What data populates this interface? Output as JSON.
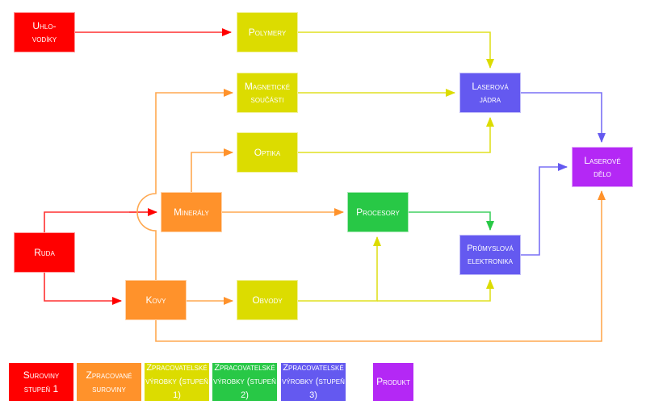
{
  "nodes": {
    "uhlovodiky": {
      "l1": "Uhlo-",
      "l2": "vodíky"
    },
    "ruda": {
      "l1": "Ruda"
    },
    "mineraly": {
      "l1": "Minerály"
    },
    "kovy": {
      "l1": "Kovy"
    },
    "polymery": {
      "l1": "Polymery"
    },
    "magneticke": {
      "l1": "Magnetické",
      "l2": "součásti"
    },
    "optika": {
      "l1": "Optika"
    },
    "obvody": {
      "l1": "Obvody"
    },
    "procesory": {
      "l1": "Procesory"
    },
    "laserova_jadra": {
      "l1": "Laserová",
      "l2": "jádra"
    },
    "prumyslova": {
      "l1": "Průmyslová",
      "l2": "elektronika"
    },
    "laserove_delo": {
      "l1": "Laserové",
      "l2": "dělo"
    }
  },
  "legend": [
    {
      "l1": "Suroviny",
      "l2": "stupeň 1",
      "color": "#ff0000"
    },
    {
      "l1": "Zpracované",
      "l2": "suroviny",
      "color": "#ff922b"
    },
    {
      "l1": "Zpracovatelské",
      "l2": "výrobky (stupeň 1)",
      "color": "#dcdc00"
    },
    {
      "l1": "Zpracovatelské",
      "l2": "výrobky (stupeň 2)",
      "color": "#28c846"
    },
    {
      "l1": "Zpracovatelské",
      "l2": "výrobky (stupeň 3)",
      "color": "#6459f0"
    },
    {
      "l1": "Produkt",
      "color": "#b428f5"
    }
  ]
}
